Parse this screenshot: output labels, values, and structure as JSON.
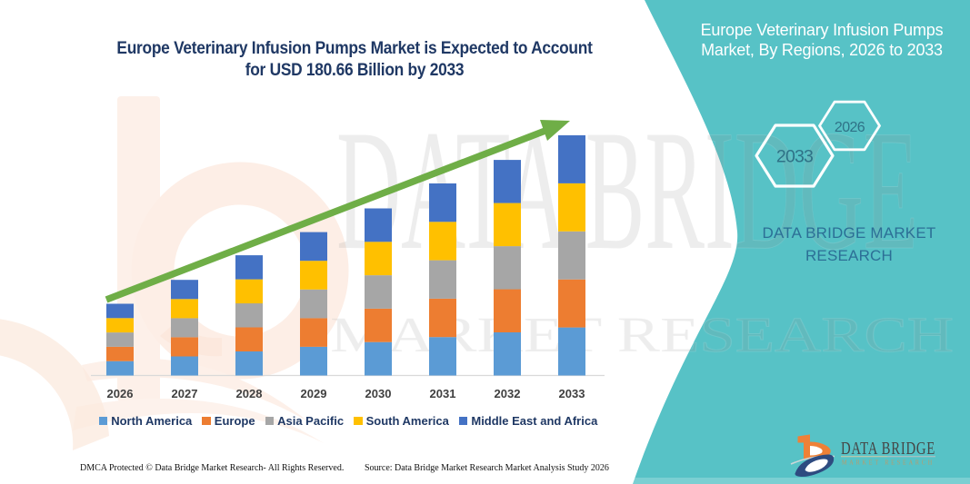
{
  "header": {
    "title_line1": "Europe Veterinary Infusion Pumps Market is Expected to Account",
    "title_line2": "for USD 180.66 Billion by 2033"
  },
  "panel": {
    "title": "Europe Veterinary Infusion Pumps Market, By Regions, 2026 to 2033",
    "hexagon_left": "2033",
    "hexagon_right": "2026",
    "brand_text": "DATA BRIDGE MARKET RESEARCH",
    "panel_color": "#57c2c6"
  },
  "watermark": {
    "line1": "DATA BRIDGE",
    "line2": "MARKET RESEARCH"
  },
  "logo": {
    "name": "DATA BRIDGE",
    "subtext": "MARKET RESEARCH"
  },
  "footer": {
    "dmca": "DMCA Protected © Data Bridge Market Research-  All Rights Reserved.",
    "source": "Source: Data Bridge Market Research  Market Analysis Study 2026"
  },
  "chart_data": {
    "type": "bar",
    "stacked": true,
    "title": "Europe Veterinary Infusion Pumps Market is Expected to Account for USD 180.66 Billion by 2033",
    "unit": "USD Billion",
    "categories": [
      "2026",
      "2027",
      "2028",
      "2029",
      "2030",
      "2031",
      "2032",
      "2033"
    ],
    "series": [
      {
        "name": "North America",
        "color": "#5b9bd5",
        "values": [
          10.79,
          14.38,
          18.09,
          21.57,
          25.14,
          28.89,
          32.43,
          36.13
        ]
      },
      {
        "name": "Europe",
        "color": "#ed7d31",
        "values": [
          10.79,
          14.38,
          18.09,
          21.57,
          25.14,
          28.89,
          32.43,
          36.13
        ]
      },
      {
        "name": "Asia Pacific",
        "color": "#a6a6a6",
        "values": [
          10.79,
          14.38,
          18.09,
          21.57,
          25.14,
          28.89,
          32.43,
          36.13
        ]
      },
      {
        "name": "South America",
        "color": "#ffc000",
        "values": [
          10.79,
          14.38,
          18.09,
          21.57,
          25.14,
          28.89,
          32.43,
          36.13
        ]
      },
      {
        "name": "Middle East and Africa",
        "color": "#4472c4",
        "values": [
          10.79,
          14.38,
          18.09,
          21.57,
          25.14,
          28.89,
          32.43,
          36.13
        ]
      }
    ],
    "totals": [
      53.96,
      71.92,
      90.43,
      107.85,
      125.68,
      144.46,
      162.15,
      180.66
    ],
    "ylim": [
      0,
      190
    ],
    "gridlines": false,
    "legend_position": "bottom",
    "trend_arrow": true,
    "trend_arrow_color": "#6fae47"
  }
}
